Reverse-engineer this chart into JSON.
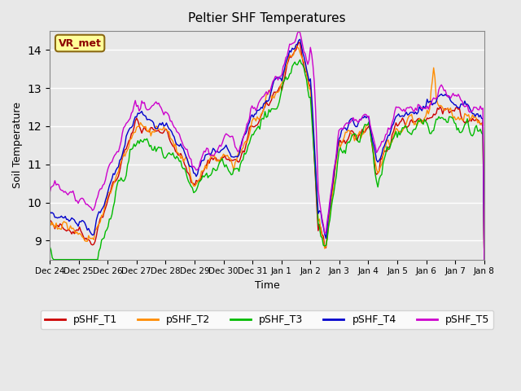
{
  "title": "Peltier SHF Temperatures",
  "xlabel": "Time",
  "ylabel": "Soil Temperature",
  "ylim": [
    8.5,
    14.5
  ],
  "annotation": "VR_met",
  "annotation_color": "#8B0000",
  "annotation_bg": "#FFFF99",
  "annotation_border": "#8B6914",
  "series_colors": {
    "pSHF_T1": "#CC0000",
    "pSHF_T2": "#FF8C00",
    "pSHF_T3": "#00BB00",
    "pSHF_T4": "#0000CC",
    "pSHF_T5": "#CC00CC"
  },
  "series_linewidth": 1.0,
  "bg_color": "#E8E8E8",
  "plot_bg_color": "#E8E8E8",
  "grid_color": "#FFFFFF",
  "tick_labels": [
    "Dec 24",
    "Dec 25",
    "Dec 26",
    "Dec 27",
    "Dec 28",
    "Dec 29",
    "Dec 30",
    "Dec 31",
    "Jan 1",
    "Jan 2",
    "Jan 3",
    "Jan 4",
    "Jan 5",
    "Jan 6",
    "Jan 7",
    "Jan 8"
  ],
  "n_points": 336,
  "random_seed": 42
}
